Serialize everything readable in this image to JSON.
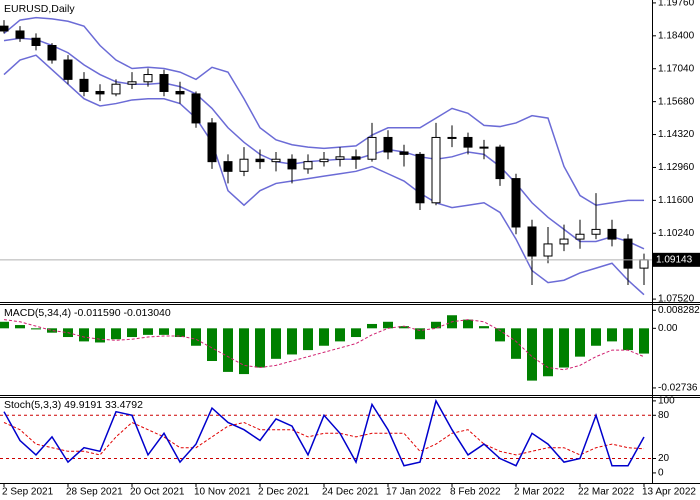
{
  "chart_data": [
    {
      "type": "candlestick",
      "title": "EURUSD,Daily",
      "open": [
        1.188,
        1.186,
        1.183,
        1.18,
        1.174,
        1.166,
        1.161,
        1.16,
        1.164,
        1.165,
        1.168,
        1.161,
        1.16,
        1.148,
        1.132,
        1.128,
        1.133,
        1.132,
        1.133,
        1.129,
        1.132,
        1.133,
        1.134,
        1.133,
        1.142,
        1.136,
        1.135,
        1.115,
        1.142,
        1.142,
        1.138,
        1.138,
        1.125,
        1.105,
        1.093,
        1.098,
        1.1,
        1.102,
        1.104,
        1.1,
        1.088
      ],
      "high": [
        1.1905,
        1.188,
        1.185,
        1.181,
        1.176,
        1.169,
        1.164,
        1.166,
        1.169,
        1.1705,
        1.17,
        1.165,
        1.161,
        1.15,
        1.135,
        1.138,
        1.137,
        1.136,
        1.135,
        1.135,
        1.136,
        1.138,
        1.137,
        1.148,
        1.145,
        1.139,
        1.136,
        1.148,
        1.147,
        1.144,
        1.141,
        1.139,
        1.127,
        1.108,
        1.105,
        1.106,
        1.108,
        1.119,
        1.108,
        1.102,
        1.094
      ],
      "low": [
        1.185,
        1.1815,
        1.178,
        1.1725,
        1.164,
        1.159,
        1.157,
        1.159,
        1.162,
        1.163,
        1.159,
        1.156,
        1.146,
        1.129,
        1.123,
        1.126,
        1.129,
        1.128,
        1.123,
        1.127,
        1.13,
        1.13,
        1.129,
        1.132,
        1.133,
        1.13,
        1.112,
        1.114,
        1.138,
        1.135,
        1.133,
        1.122,
        1.102,
        1.081,
        1.09,
        1.095,
        1.096,
        1.1,
        1.097,
        1.081,
        1.081
      ],
      "close": [
        1.186,
        1.183,
        1.18,
        1.174,
        1.166,
        1.161,
        1.16,
        1.164,
        1.165,
        1.168,
        1.161,
        1.16,
        1.148,
        1.132,
        1.128,
        1.133,
        1.132,
        1.133,
        1.129,
        1.132,
        1.133,
        1.134,
        1.133,
        1.142,
        1.136,
        1.135,
        1.115,
        1.142,
        1.142,
        1.138,
        1.138,
        1.125,
        1.105,
        1.093,
        1.098,
        1.1,
        1.102,
        1.104,
        1.1,
        1.088,
        1.09143
      ],
      "upper_band": [
        1.185,
        1.1905,
        1.1915,
        1.191,
        1.19,
        1.188,
        1.18,
        1.174,
        1.1705,
        1.171,
        1.1705,
        1.169,
        1.166,
        1.171,
        1.169,
        1.158,
        1.146,
        1.141,
        1.139,
        1.138,
        1.1375,
        1.138,
        1.1385,
        1.143,
        1.146,
        1.146,
        1.146,
        1.15,
        1.154,
        1.152,
        1.147,
        1.1465,
        1.148,
        1.151,
        1.15,
        1.13,
        1.118,
        1.114,
        1.115,
        1.116,
        1.116
      ],
      "middle_band": [
        1.182,
        1.183,
        1.1825,
        1.18,
        1.177,
        1.172,
        1.168,
        1.165,
        1.164,
        1.164,
        1.1645,
        1.163,
        1.16,
        1.154,
        1.146,
        1.14,
        1.135,
        1.132,
        1.131,
        1.132,
        1.1325,
        1.133,
        1.133,
        1.135,
        1.137,
        1.136,
        1.134,
        1.133,
        1.134,
        1.136,
        1.135,
        1.13,
        1.123,
        1.115,
        1.109,
        1.104,
        1.099,
        1.099,
        1.101,
        1.099,
        1.096
      ],
      "lower_band": [
        1.168,
        1.174,
        1.176,
        1.17,
        1.164,
        1.158,
        1.155,
        1.156,
        1.1575,
        1.158,
        1.158,
        1.156,
        1.15,
        1.14,
        1.12,
        1.114,
        1.12,
        1.123,
        1.124,
        1.125,
        1.126,
        1.127,
        1.128,
        1.13,
        1.127,
        1.124,
        1.119,
        1.115,
        1.113,
        1.114,
        1.115,
        1.111,
        1.1,
        1.087,
        1.082,
        1.083,
        1.086,
        1.088,
        1.09,
        1.083,
        1.077
      ],
      "band_color": "#6b6bd6",
      "ylim": [
        1.074,
        1.1988
      ],
      "yticks": [
        {
          "value": 1.1976,
          "label": "1.19760"
        },
        {
          "value": 1.184,
          "label": "1.18400"
        },
        {
          "value": 1.1704,
          "label": "1.17040"
        },
        {
          "value": 1.1568,
          "label": "1.15680"
        },
        {
          "value": 1.1432,
          "label": "1.14320"
        },
        {
          "value": 1.1296,
          "label": "1.12960"
        },
        {
          "value": 1.116,
          "label": "1.11600"
        },
        {
          "value": 1.1024,
          "label": "1.10240"
        },
        {
          "value": 1.0752,
          "label": "1.07520"
        }
      ]
    },
    {
      "type": "macd",
      "title": "MACD(5,34,4) -0.011590 -0.013040",
      "values": [
        0.003,
        0.0015,
        -0.0005,
        -0.002,
        -0.004,
        -0.006,
        -0.0065,
        -0.005,
        -0.004,
        -0.003,
        -0.003,
        -0.004,
        -0.008,
        -0.015,
        -0.02,
        -0.021,
        -0.018,
        -0.014,
        -0.012,
        -0.01,
        -0.008,
        -0.006,
        -0.004,
        0.002,
        0.003,
        0.001,
        -0.005,
        0.003,
        0.006,
        0.004,
        0.001,
        -0.006,
        -0.014,
        -0.024,
        -0.022,
        -0.018,
        -0.013,
        -0.008,
        -0.006,
        -0.01,
        -0.01159
      ],
      "signal": [
        0.004,
        0.003,
        0.001,
        -0.001,
        -0.002,
        -0.004,
        -0.005,
        -0.0055,
        -0.005,
        -0.004,
        -0.0035,
        -0.0035,
        -0.005,
        -0.009,
        -0.013,
        -0.017,
        -0.018,
        -0.017,
        -0.015,
        -0.013,
        -0.011,
        -0.009,
        -0.007,
        -0.003,
        0.0,
        0.001,
        -0.001,
        0.0,
        0.003,
        0.004,
        0.003,
        -0.001,
        -0.006,
        -0.013,
        -0.018,
        -0.019,
        -0.017,
        -0.013,
        -0.01,
        -0.01,
        -0.01304
      ],
      "color": "#008000",
      "signal_color": "#d02070",
      "ylim": [
        -0.0306,
        0.0107
      ],
      "yticks": [
        0.008282,
        {
          "value": 0,
          "label": "0.00"
        },
        -0.02736
      ]
    },
    {
      "type": "stochastic",
      "title": "Stoch(5,3,3) 49.9191 33.4792",
      "main": [
        85,
        45,
        25,
        50,
        15,
        35,
        30,
        85,
        80,
        25,
        55,
        15,
        40,
        90,
        70,
        60,
        45,
        75,
        65,
        25,
        80,
        55,
        15,
        95,
        60,
        10,
        15,
        100,
        60,
        25,
        40,
        20,
        10,
        55,
        40,
        15,
        20,
        80,
        10,
        10,
        49.9191
      ],
      "signal": [
        70,
        60,
        40,
        35,
        30,
        30,
        25,
        50,
        70,
        60,
        50,
        35,
        35,
        50,
        65,
        70,
        60,
        60,
        60,
        50,
        55,
        55,
        50,
        55,
        55,
        55,
        30,
        40,
        55,
        60,
        40,
        30,
        25,
        30,
        35,
        35,
        25,
        35,
        40,
        35,
        33.4792
      ],
      "color": "#0000cc",
      "signal_color": "#e00000",
      "levels": [
        20,
        80
      ],
      "level_color": "#cc0000",
      "ylim": [
        -14,
        104
      ],
      "yticks": [
        100,
        80,
        20,
        0
      ],
      "categories": [
        "2 Sep 2021",
        null,
        null,
        null,
        "28 Sep 2021",
        null,
        null,
        null,
        "20 Oct 2021",
        null,
        null,
        null,
        "10 Nov 2021",
        null,
        null,
        null,
        "2 Dec 2021",
        null,
        null,
        null,
        "24 Dec 2021",
        null,
        null,
        null,
        "17 Jan 2022",
        null,
        null,
        null,
        "8 Feb 2022",
        null,
        null,
        null,
        "2 Mar 2022",
        null,
        null,
        null,
        "22 Mar 2022",
        null,
        null,
        null,
        "13 Apr 2022"
      ]
    }
  ]
}
